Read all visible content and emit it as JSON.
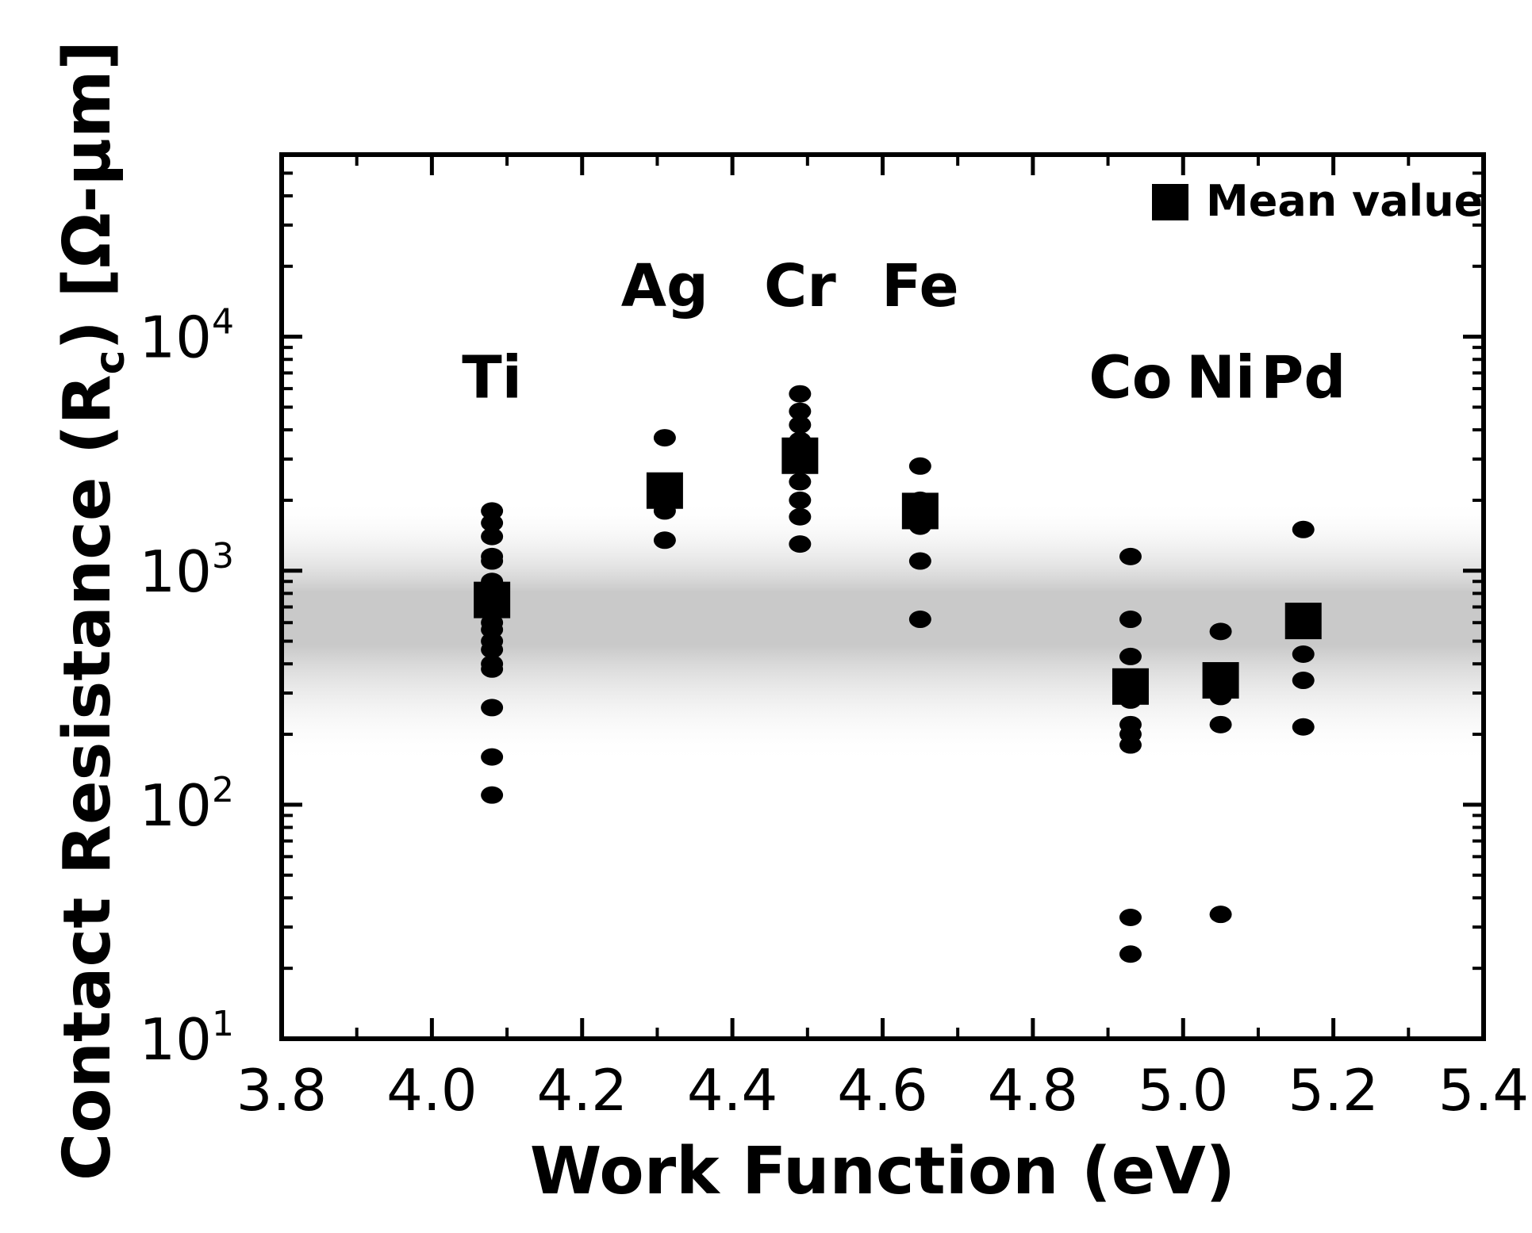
{
  "chart_data": {
    "type": "scatter",
    "xlabel": "Work Function (eV)",
    "ylabel": "Contact Resistance (R_c) [Ω-μm]",
    "ylabel_parts": {
      "main": "Contact Resistance (R",
      "subscript": "c",
      "tail": ") [Ω-μm]"
    },
    "xlim": [
      3.8,
      5.4
    ],
    "ylim": [
      10,
      60000
    ],
    "y_scale": "log",
    "grid": false,
    "x_ticks": [
      {
        "value": 3.8,
        "label": "3.8"
      },
      {
        "value": 4.0,
        "label": "4.0"
      },
      {
        "value": 4.2,
        "label": "4.2"
      },
      {
        "value": 4.4,
        "label": "4.4"
      },
      {
        "value": 4.6,
        "label": "4.6"
      },
      {
        "value": 4.8,
        "label": "4.8"
      },
      {
        "value": 5.0,
        "label": "5.0"
      },
      {
        "value": 5.2,
        "label": "5.2"
      },
      {
        "value": 5.4,
        "label": "5.4"
      }
    ],
    "y_ticks": [
      {
        "value": 10,
        "base": "10",
        "exp": "1"
      },
      {
        "value": 100,
        "base": "10",
        "exp": "2"
      },
      {
        "value": 1000,
        "base": "10",
        "exp": "3"
      },
      {
        "value": 10000,
        "base": "10",
        "exp": "4"
      }
    ],
    "shaded_band": {
      "y_from": 150,
      "y_to": 2000,
      "peak": 800,
      "color": "#c6c6c6"
    },
    "legend": {
      "label": "Mean value",
      "position": "top-right",
      "marker": "square"
    },
    "metals": [
      {
        "name": "Ti",
        "x": 4.08,
        "label_y": 5500,
        "points": [
          1800,
          1600,
          1400,
          1150,
          1100,
          900,
          850,
          750,
          700,
          600,
          560,
          500,
          460,
          400,
          380,
          260,
          160,
          110
        ],
        "mean": 750
      },
      {
        "name": "Ag",
        "x": 4.31,
        "label_y": 13500,
        "points": [
          3700,
          2100,
          1900,
          1800,
          1350
        ],
        "mean": 2200
      },
      {
        "name": "Cr",
        "x": 4.49,
        "label_y": 13500,
        "points": [
          5700,
          4800,
          4200,
          3600,
          2400,
          2000,
          1700,
          1300
        ],
        "mean": 3100
      },
      {
        "name": "Fe",
        "x": 4.65,
        "label_y": 13500,
        "points": [
          2800,
          2000,
          1700,
          1550,
          1100,
          620
        ],
        "mean": 1800
      },
      {
        "name": "Co",
        "x": 4.93,
        "label_y": 5500,
        "points": [
          1150,
          620,
          430,
          280,
          220,
          200,
          180,
          33,
          23
        ],
        "mean": 320
      },
      {
        "name": "Ni",
        "x": 5.05,
        "label_y": 5500,
        "points": [
          550,
          290,
          220,
          34
        ],
        "mean": 340
      },
      {
        "name": "Pd",
        "x": 5.16,
        "label_y": 5500,
        "points": [
          1500,
          440,
          340,
          215
        ],
        "mean": 610
      }
    ]
  }
}
